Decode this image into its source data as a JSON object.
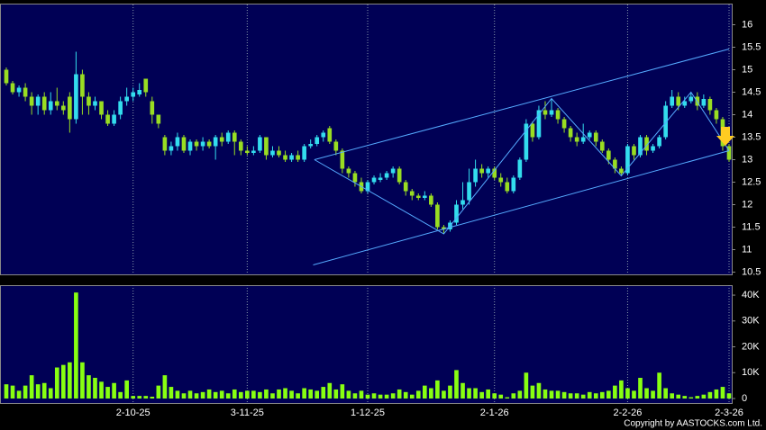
{
  "chart_data": {
    "type": "candlestick",
    "categories": [
      null,
      null,
      null,
      null,
      null,
      null,
      null,
      null,
      null,
      null,
      null,
      null,
      null,
      null,
      null,
      null,
      null,
      null,
      null,
      null,
      "2-10-25",
      null,
      null,
      null,
      null,
      null,
      null,
      null,
      null,
      null,
      null,
      null,
      null,
      null,
      null,
      null,
      null,
      null,
      "3-11-25",
      null,
      null,
      null,
      null,
      null,
      null,
      null,
      null,
      null,
      null,
      null,
      null,
      null,
      null,
      null,
      null,
      null,
      null,
      "1-12-25",
      null,
      null,
      null,
      null,
      null,
      null,
      null,
      null,
      null,
      null,
      null,
      null,
      null,
      null,
      null,
      null,
      null,
      null,
      null,
      "2-1-26",
      null,
      null,
      null,
      null,
      null,
      null,
      null,
      null,
      null,
      null,
      null,
      null,
      null,
      null,
      null,
      null,
      null,
      null,
      null,
      null,
      "2-2-26",
      null,
      null,
      null,
      null,
      null,
      null,
      null,
      null,
      null,
      null,
      null,
      null,
      null,
      null,
      null,
      "2-3-26"
    ],
    "open": [
      15.0,
      14.7,
      14.5,
      14.6,
      14.4,
      14.2,
      14.4,
      14.1,
      14.3,
      14.2,
      14.4,
      13.9,
      14.9,
      14.4,
      14.2,
      14.3,
      14.0,
      13.8,
      14.0,
      14.3,
      14.4,
      14.45,
      14.8,
      14.3,
      14.0,
      13.5,
      13.2,
      13.3,
      13.5,
      13.2,
      13.4,
      13.3,
      13.4,
      13.3,
      13.5,
      13.4,
      13.6,
      13.4,
      13.2,
      13.15,
      13.2,
      13.5,
      13.1,
      13.2,
      13.1,
      13.0,
      13.1,
      13.0,
      13.3,
      13.35,
      13.5,
      13.7,
      13.4,
      13.2,
      12.8,
      12.7,
      12.5,
      12.3,
      12.5,
      12.55,
      12.6,
      12.7,
      12.8,
      12.5,
      12.3,
      12.2,
      12.15,
      12.2,
      12.0,
      11.5,
      11.45,
      11.6,
      12.0,
      12.1,
      12.5,
      12.8,
      12.7,
      12.8,
      12.6,
      12.5,
      12.3,
      12.6,
      13.0,
      13.8,
      13.5,
      14.1,
      14.0,
      14.1,
      13.9,
      13.7,
      13.5,
      13.4,
      13.5,
      13.6,
      13.4,
      13.2,
      13.0,
      12.8,
      12.7,
      13.3,
      13.1,
      13.5,
      13.2,
      13.3,
      13.5,
      14.2,
      14.4,
      14.2,
      14.3,
      14.4,
      14.2,
      14.35,
      14.1,
      13.9,
      13.3
    ],
    "high": [
      15.05,
      14.75,
      14.65,
      14.7,
      14.5,
      14.45,
      14.5,
      14.5,
      14.6,
      14.3,
      14.5,
      15.4,
      15.0,
      14.5,
      14.4,
      14.3,
      14.1,
      14.1,
      14.4,
      14.6,
      14.6,
      14.7,
      14.8,
      14.4,
      14.0,
      13.55,
      13.4,
      13.6,
      13.55,
      13.45,
      13.45,
      13.5,
      13.45,
      13.55,
      13.6,
      13.65,
      13.65,
      13.45,
      13.3,
      13.3,
      13.55,
      13.5,
      13.3,
      13.3,
      13.2,
      13.15,
      13.2,
      13.35,
      13.45,
      13.55,
      13.65,
      13.75,
      13.45,
      13.25,
      12.85,
      12.75,
      12.6,
      12.55,
      12.65,
      12.7,
      12.75,
      12.85,
      12.85,
      12.55,
      12.35,
      12.25,
      12.3,
      12.25,
      12.05,
      11.55,
      11.65,
      12.1,
      12.5,
      12.8,
      13.0,
      12.9,
      12.85,
      12.85,
      12.7,
      12.6,
      12.65,
      13.05,
      13.9,
      13.85,
      14.2,
      14.3,
      14.36,
      14.15,
      13.95,
      13.75,
      13.6,
      13.8,
      13.65,
      13.65,
      13.45,
      13.25,
      13.05,
      12.85,
      13.35,
      13.35,
      13.55,
      13.55,
      13.35,
      13.55,
      14.3,
      14.55,
      14.5,
      14.4,
      14.5,
      14.5,
      14.45,
      14.4,
      14.15,
      13.95,
      13.35
    ],
    "low": [
      14.65,
      14.45,
      14.4,
      14.3,
      14.0,
      14.0,
      14.0,
      14.0,
      14.1,
      14.0,
      13.6,
      13.8,
      14.0,
      14.0,
      14.1,
      13.9,
      13.75,
      13.75,
      13.9,
      14.2,
      14.3,
      14.4,
      14.4,
      13.8,
      13.7,
      13.1,
      13.1,
      13.2,
      13.15,
      13.1,
      13.2,
      13.2,
      13.25,
      13.0,
      13.3,
      13.35,
      13.1,
      13.1,
      13.1,
      13.1,
      13.15,
      13.0,
      13.05,
      13.05,
      12.95,
      12.95,
      12.95,
      12.95,
      13.25,
      13.3,
      13.4,
      13.35,
      13.1,
      12.7,
      12.6,
      12.4,
      12.25,
      12.25,
      12.45,
      12.5,
      12.55,
      12.6,
      12.45,
      12.2,
      12.1,
      12.1,
      12.1,
      11.95,
      11.45,
      11.35,
      11.4,
      11.55,
      11.9,
      12.0,
      12.4,
      12.6,
      12.6,
      12.55,
      12.4,
      12.25,
      12.25,
      12.55,
      12.95,
      13.4,
      13.45,
      13.9,
      13.95,
      13.8,
      13.6,
      13.4,
      13.3,
      13.35,
      13.45,
      13.3,
      13.15,
      12.9,
      12.7,
      12.64,
      12.65,
      13.0,
      13.05,
      13.1,
      13.15,
      13.25,
      13.45,
      14.15,
      14.1,
      14.15,
      14.25,
      14.1,
      14.15,
      14.0,
      13.8,
      13.2,
      12.95
    ],
    "close": [
      14.7,
      14.5,
      14.6,
      14.4,
      14.2,
      14.4,
      14.1,
      14.3,
      14.2,
      14.1,
      13.9,
      14.9,
      14.4,
      14.2,
      14.3,
      14.0,
      13.8,
      14.0,
      14.3,
      14.4,
      14.5,
      14.55,
      14.5,
      14.0,
      13.8,
      13.2,
      13.3,
      13.5,
      13.2,
      13.4,
      13.3,
      13.4,
      13.3,
      13.5,
      13.4,
      13.6,
      13.4,
      13.2,
      13.15,
      13.2,
      13.5,
      13.1,
      13.2,
      13.1,
      13.0,
      13.1,
      13.0,
      13.3,
      13.35,
      13.5,
      13.6,
      13.4,
      13.2,
      12.8,
      12.7,
      12.5,
      12.3,
      12.5,
      12.6,
      12.6,
      12.7,
      12.8,
      12.5,
      12.3,
      12.2,
      12.15,
      12.2,
      12.0,
      11.5,
      11.45,
      11.6,
      12.0,
      12.1,
      12.5,
      12.8,
      12.7,
      12.8,
      12.6,
      12.5,
      12.3,
      12.6,
      13.0,
      13.8,
      13.5,
      14.1,
      14.0,
      14.1,
      13.9,
      13.7,
      13.5,
      13.4,
      13.5,
      13.6,
      13.4,
      13.2,
      13.0,
      12.8,
      12.7,
      13.3,
      13.1,
      13.5,
      13.2,
      13.3,
      13.5,
      14.2,
      14.4,
      14.2,
      14.3,
      14.4,
      14.2,
      14.35,
      14.1,
      13.9,
      13.3,
      13.0
    ],
    "volume": [
      5500,
      5000,
      3000,
      5000,
      9000,
      5500,
      6000,
      4000,
      12000,
      13000,
      14000,
      41000,
      14000,
      9000,
      8000,
      6500,
      4500,
      6000,
      2500,
      7000,
      1000,
      1000,
      1000,
      700,
      5000,
      9000,
      4500,
      3000,
      2000,
      3000,
      2000,
      2500,
      3500,
      2500,
      3000,
      2000,
      3500,
      2500,
      3000,
      3000,
      2500,
      3500,
      2000,
      3500,
      4000,
      3000,
      2000,
      4000,
      3500,
      3000,
      4500,
      6000,
      3500,
      5500,
      3000,
      2000,
      3000,
      1500,
      2000,
      1500,
      1500,
      2000,
      3500,
      2500,
      1500,
      3000,
      5000,
      4000,
      7000,
      3000,
      5000,
      11000,
      6000,
      4000,
      4000,
      2500,
      3500,
      2000,
      1500,
      500,
      2000,
      3000,
      10000,
      5000,
      6000,
      3500,
      3000,
      3000,
      2500,
      2000,
      2000,
      1500,
      2500,
      2000,
      2500,
      3000,
      5000,
      7000,
      4000,
      3000,
      8000,
      4000,
      3000,
      10000,
      4000,
      2000,
      1500,
      1000,
      500,
      1000,
      1500,
      2500,
      3500,
      4500,
      2000
    ],
    "up_color": "#33ddee",
    "down_color": "#99dd22",
    "volume_color": "#88ff11",
    "ylim": [
      10.45,
      16.45
    ],
    "yticks": [
      10.5,
      11,
      11.5,
      12,
      12.5,
      13,
      13.5,
      14,
      14.5,
      15,
      15.5,
      16
    ],
    "volume_ylim": [
      0,
      43500
    ],
    "volume_yticks": [
      0,
      {
        "value": 10000,
        "label": "10K"
      },
      {
        "value": 20000,
        "label": "20K"
      },
      {
        "value": 30000,
        "label": "30K"
      },
      {
        "value": 40000,
        "label": "40K"
      }
    ],
    "trendlines": [
      {
        "color": "#55aaff",
        "x": [
          48.4,
          114
        ],
        "y": [
          10.66,
          13.2
        ]
      },
      {
        "color": "#55aaff",
        "x": [
          48.6,
          114
        ],
        "y": [
          13.0,
          15.46
        ]
      },
      {
        "color": "#55aaff",
        "x": [
          48.6,
          69,
          86,
          97,
          108,
          114
        ],
        "y": [
          13.0,
          11.35,
          14.36,
          12.64,
          14.5,
          13.2
        ]
      }
    ],
    "grid": true,
    "copyright": "Copyright by AASTOCKS.com Ltd."
  }
}
